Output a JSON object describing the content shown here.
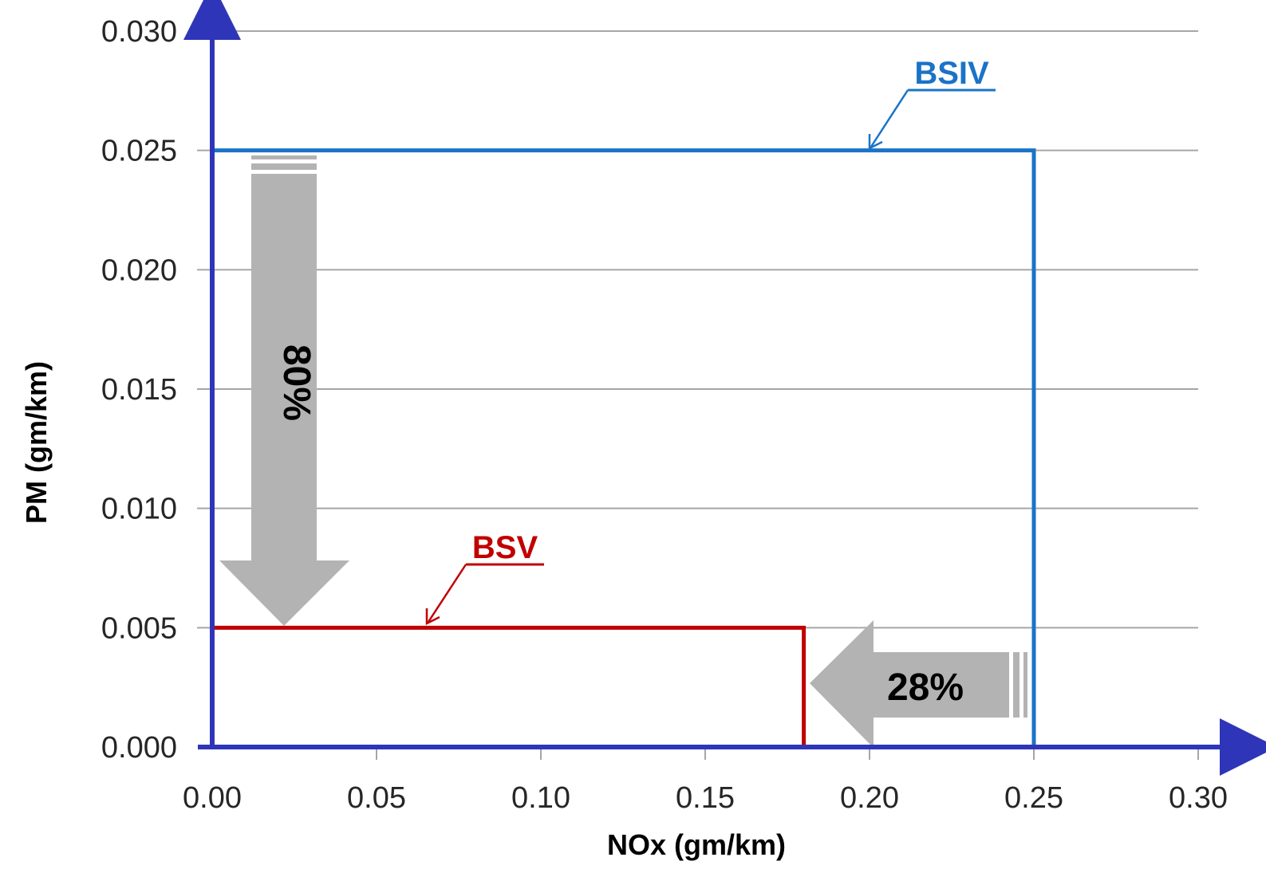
{
  "chart_data": {
    "type": "line",
    "xlabel": "NOx (gm/km)",
    "ylabel": "PM (gm/km)",
    "xlim": [
      0,
      0.3
    ],
    "ylim": [
      0,
      0.03
    ],
    "x_ticks": [
      "0.00",
      "0.05",
      "0.10",
      "0.15",
      "0.20",
      "0.25",
      "0.30"
    ],
    "y_ticks": [
      "0.000",
      "0.005",
      "0.010",
      "0.015",
      "0.020",
      "0.025",
      "0.030"
    ],
    "grid": true,
    "series": [
      {
        "name": "BSIV",
        "color": "#1a73c8",
        "points": [
          [
            0,
            0.025
          ],
          [
            0.25,
            0.025
          ],
          [
            0.25,
            0
          ]
        ]
      },
      {
        "name": "BSV",
        "color": "#c00000",
        "points": [
          [
            0,
            0.005
          ],
          [
            0.18,
            0.005
          ],
          [
            0.18,
            0
          ]
        ]
      }
    ],
    "annotations": {
      "pm_reduction": "80%",
      "nox_reduction": "28%"
    }
  },
  "colors": {
    "axis": "#2e35b8",
    "grid": "#a6a6a6",
    "arrow_fill": "#b3b3b3"
  }
}
